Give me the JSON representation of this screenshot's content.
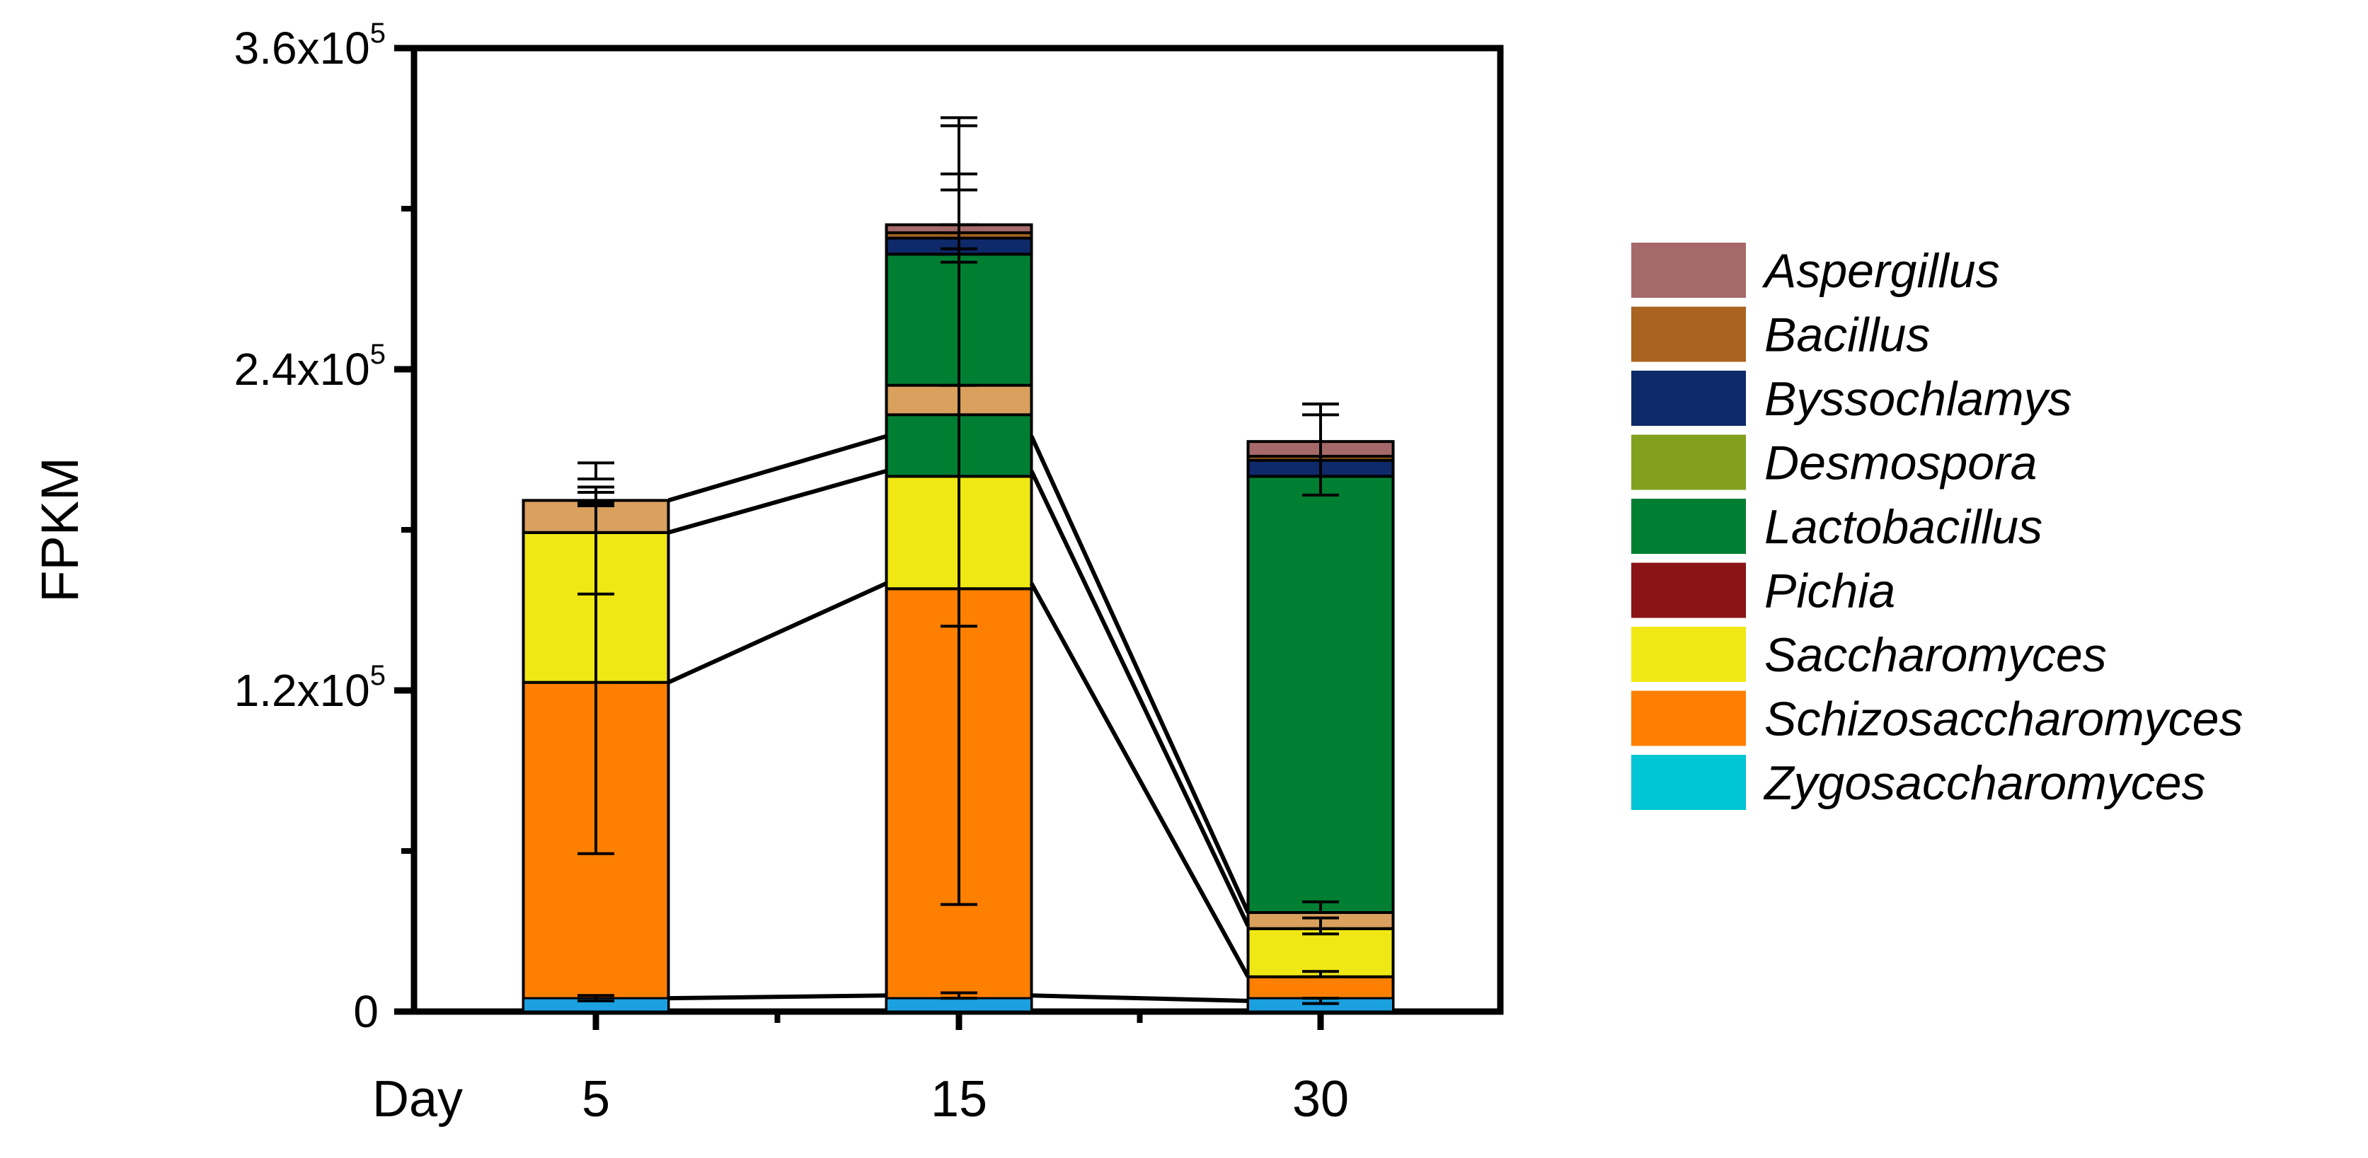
{
  "chart_data": {
    "type": "bar",
    "stacked": true,
    "ylabel": "FPKM",
    "xlabel": "",
    "x_axis_title": "Day",
    "categories": [
      "5",
      "15",
      "30"
    ],
    "ylim": [
      0,
      360000
    ],
    "y_ticks": [
      {
        "value": 0,
        "base": "0",
        "exp": ""
      },
      {
        "value": 120000,
        "base": "1.2x10",
        "exp": "5"
      },
      {
        "value": 240000,
        "base": "2.4x10",
        "exp": "5"
      },
      {
        "value": 360000,
        "base": "3.6x10",
        "exp": "5"
      }
    ],
    "y_minor_ticks": [
      60000,
      180000,
      300000
    ],
    "legend_position": "right",
    "series": [
      {
        "name": "Zygosaccharomyces",
        "color": "#00c5d4",
        "values": [
          3000,
          3000,
          3000
        ]
      },
      {
        "name": "Schizosaccharomyces",
        "color": "#ff8000",
        "values": [
          120000,
          155000,
          10000
        ]
      },
      {
        "name": "Saccharomyces",
        "color": "#f0e815",
        "values": [
          56000,
          42000,
          18000
        ]
      },
      {
        "name": "Pichia",
        "color": "#8b1417",
        "values": [
          0,
          0,
          0
        ]
      },
      {
        "name": "Lactobacillus",
        "color": "#007f33",
        "values": [
          8000,
          83000,
          169000
        ]
      },
      {
        "name": "Desmospora",
        "color": "#82a01e",
        "values": [
          0,
          0,
          0
        ]
      },
      {
        "name": "Byssochlamys",
        "color": "#0e2a6a",
        "values": [
          1500,
          6000,
          6000
        ]
      },
      {
        "name": "Bacillus",
        "color": "#a86420",
        "values": [
          0,
          2000,
          1500
        ]
      },
      {
        "name": "Aspergillus",
        "color": "#a6696a",
        "values": [
          0,
          3000,
          5500
        ]
      }
    ],
    "layer_colors_override": {
      "Zygosaccharomyces": "#1ba0e0",
      "Saccharomyces_band": "#d9a05e"
    },
    "error_bars": [
      {
        "category": "5",
        "value": 5000,
        "err": 1000
      },
      {
        "category": "5",
        "value": 124000,
        "err": 65000
      },
      {
        "category": "5",
        "value": 175000,
        "err": 19000
      },
      {
        "category": "5",
        "value": 193000,
        "err": 3000
      },
      {
        "category": "5",
        "value": 202000,
        "err": 3000
      },
      {
        "category": "15",
        "value": 6000,
        "err": 1000
      },
      {
        "category": "15",
        "value": 160000,
        "err": 120000
      },
      {
        "category": "15",
        "value": 219000,
        "err": 75000
      },
      {
        "category": "15",
        "value": 284000,
        "err": 50000
      },
      {
        "category": "15",
        "value": 308000,
        "err": 23000
      },
      {
        "category": "15",
        "value": 310000,
        "err": 3000
      },
      {
        "category": "30",
        "value": 4000,
        "err": 1000
      },
      {
        "category": "30",
        "value": 14000,
        "err": 1000
      },
      {
        "category": "30",
        "value": 32000,
        "err": 3000
      },
      {
        "category": "30",
        "value": 39000,
        "err": 2000
      },
      {
        "category": "30",
        "value": 210000,
        "err": 17000
      },
      {
        "category": "30",
        "value": 225000,
        "err": 2000
      }
    ]
  }
}
